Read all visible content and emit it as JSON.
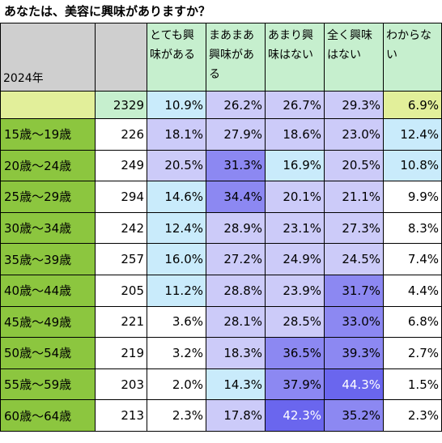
{
  "title": "あなたは、美容に興味がありますか？",
  "corner_label": "2024年",
  "chart_data": {
    "type": "table",
    "title": "あなたは、美容に興味がありますか？",
    "year_label": "2024年",
    "columns": [
      "とても興味がある",
      "まあまあ興味がある",
      "あまり興味はない",
      "全く興味はない",
      "わからない"
    ],
    "header_lines": [
      [
        "とても興",
        "味がある"
      ],
      [
        "まあまあ",
        "興味があ",
        "る"
      ],
      [
        "あまり興",
        "味はない"
      ],
      [
        "全く興味",
        "はない"
      ],
      [
        "わからな",
        "い"
      ]
    ],
    "total": {
      "n": "2329",
      "values": [
        "10.9%",
        "26.2%",
        "26.7%",
        "29.3%",
        "6.9%"
      ]
    },
    "rows": [
      {
        "label": "15歳～19歳",
        "n": "226",
        "values": [
          "18.1%",
          "27.9%",
          "18.6%",
          "23.0%",
          "12.4%"
        ]
      },
      {
        "label": "20歳～24歳",
        "n": "249",
        "values": [
          "20.5%",
          "31.3%",
          "16.9%",
          "20.5%",
          "10.8%"
        ]
      },
      {
        "label": "25歳～29歳",
        "n": "294",
        "values": [
          "14.6%",
          "34.4%",
          "20.1%",
          "21.1%",
          "9.9%"
        ]
      },
      {
        "label": "30歳～34歳",
        "n": "242",
        "values": [
          "12.4%",
          "28.9%",
          "23.1%",
          "27.3%",
          "8.3%"
        ]
      },
      {
        "label": "35歳～39歳",
        "n": "257",
        "values": [
          "16.0%",
          "27.2%",
          "24.9%",
          "24.5%",
          "7.4%"
        ]
      },
      {
        "label": "40歳～44歳",
        "n": "205",
        "values": [
          "11.2%",
          "28.8%",
          "23.9%",
          "31.7%",
          "4.4%"
        ]
      },
      {
        "label": "45歳～49歳",
        "n": "221",
        "values": [
          "3.6%",
          "28.1%",
          "28.5%",
          "33.0%",
          "6.8%"
        ]
      },
      {
        "label": "50歳～54歳",
        "n": "219",
        "values": [
          "3.2%",
          "18.3%",
          "36.5%",
          "39.3%",
          "2.7%"
        ]
      },
      {
        "label": "55歳～59歳",
        "n": "203",
        "values": [
          "2.0%",
          "14.3%",
          "37.9%",
          "44.3%",
          "1.5%"
        ]
      },
      {
        "label": "60歳～64歳",
        "n": "213",
        "values": [
          "2.3%",
          "17.8%",
          "42.3%",
          "35.2%",
          "2.3%"
        ]
      }
    ]
  },
  "colors": {
    "header_gray": "#cfcfcf",
    "header_green": "#c6efce",
    "total_yellowgreen": "#e2ef9a",
    "total_n_bg": "#c6efce",
    "age_label_green": "#8cc63f",
    "n_cell_white": "#ffffff",
    "heat_white": "#ffffff",
    "heat_lightblue": "#c9ebfb",
    "heat_lavender": "#cccbf9",
    "heat_deep": "#8c88f2",
    "heat_dark": "#6a66ee"
  }
}
